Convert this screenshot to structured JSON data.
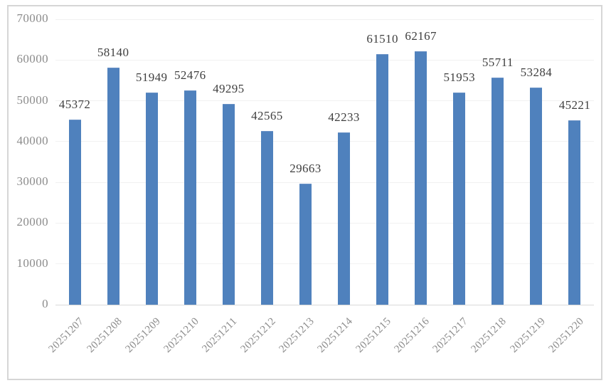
{
  "chart_data": {
    "type": "bar",
    "title": "",
    "xlabel": "",
    "ylabel": "",
    "categories": [
      "20251207",
      "20251208",
      "20251209",
      "20251210",
      "20251211",
      "20251212",
      "20251213",
      "20251214",
      "20251215",
      "20251216",
      "20251217",
      "20251218",
      "20251219",
      "20251220"
    ],
    "values": [
      45372,
      58140,
      51949,
      52476,
      49295,
      42565,
      29663,
      42233,
      61510,
      62167,
      51953,
      55711,
      53284,
      45221
    ],
    "data_labels_shown": true,
    "ylim": [
      0,
      70000
    ],
    "ytick_interval": 10000,
    "yticks": [
      0,
      10000,
      20000,
      30000,
      40000,
      50000,
      60000,
      70000
    ],
    "ytick_labels": [
      "0",
      "10000",
      "20000",
      "30000",
      "40000",
      "50000",
      "60000",
      "70000"
    ],
    "xtick_rotation_deg": 45,
    "grid": true,
    "legend": false,
    "colors": {
      "bar_fill": "#4F81BD",
      "value_label": "#3F3F3F",
      "axis_label": "#8C8C8C",
      "gridline": "#F1F1F1",
      "baseline": "#D9D9D9",
      "frame_border": "#D6D6D6",
      "background": "#FFFFFF"
    }
  }
}
